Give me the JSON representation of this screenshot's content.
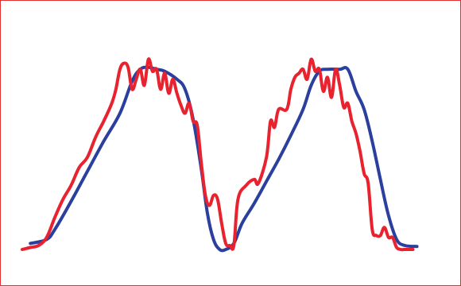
{
  "chart_data": {
    "type": "line",
    "title": "",
    "xlabel": "",
    "ylabel": "",
    "xlim": [
      0,
      100
    ],
    "ylim": [
      0,
      100
    ],
    "grid": false,
    "legend": "none",
    "colors": {
      "border": "#e03030",
      "background": "#ffffff"
    },
    "series": [
      {
        "color": "#2a3f9e",
        "stroke_width": 4,
        "points": [
          [
            2,
            3
          ],
          [
            6,
            5
          ],
          [
            8,
            10
          ],
          [
            12,
            24
          ],
          [
            16,
            39
          ],
          [
            20,
            54
          ],
          [
            24,
            68
          ],
          [
            27,
            84
          ],
          [
            29,
            90
          ],
          [
            31,
            91
          ],
          [
            33,
            90
          ],
          [
            35,
            89
          ],
          [
            38,
            85
          ],
          [
            40,
            80
          ],
          [
            42,
            65
          ],
          [
            44,
            40
          ],
          [
            45.5,
            18
          ],
          [
            47,
            5
          ],
          [
            48.5,
            0
          ],
          [
            50,
            0
          ],
          [
            52,
            3
          ],
          [
            54,
            13
          ],
          [
            57,
            23
          ],
          [
            60,
            34
          ],
          [
            63,
            45
          ],
          [
            66,
            57
          ],
          [
            69,
            70
          ],
          [
            71,
            82
          ],
          [
            73,
            89
          ],
          [
            75,
            90
          ],
          [
            78,
            90
          ],
          [
            80,
            90
          ],
          [
            82,
            79
          ],
          [
            84,
            70
          ],
          [
            86,
            54
          ],
          [
            88,
            35
          ],
          [
            90,
            17
          ],
          [
            92,
            5
          ],
          [
            94,
            2
          ],
          [
            97,
            1.5
          ]
        ]
      },
      {
        "color": "#e8232f",
        "stroke_width": 4,
        "points": [
          [
            0,
            0
          ],
          [
            2,
            1
          ],
          [
            4,
            2
          ],
          [
            6,
            6
          ],
          [
            8,
            16
          ],
          [
            10,
            25
          ],
          [
            12,
            32
          ],
          [
            14,
            41
          ],
          [
            16,
            46
          ],
          [
            18,
            56
          ],
          [
            20,
            64
          ],
          [
            22,
            73
          ],
          [
            23,
            80
          ],
          [
            24,
            90
          ],
          [
            25,
            93
          ],
          [
            26,
            91
          ],
          [
            27,
            80
          ],
          [
            28,
            85
          ],
          [
            29,
            90
          ],
          [
            30,
            82
          ],
          [
            31,
            95
          ],
          [
            32,
            89
          ],
          [
            33,
            90
          ],
          [
            34,
            80
          ],
          [
            35,
            88
          ],
          [
            36,
            78
          ],
          [
            37,
            85
          ],
          [
            38,
            78
          ],
          [
            39,
            72
          ],
          [
            40,
            68
          ],
          [
            41,
            73
          ],
          [
            42,
            64
          ],
          [
            43,
            62
          ],
          [
            44,
            43
          ],
          [
            45,
            27
          ],
          [
            46,
            22
          ],
          [
            47,
            27
          ],
          [
            48,
            25
          ],
          [
            49,
            13
          ],
          [
            50,
            3
          ],
          [
            51,
            2
          ],
          [
            52,
            2
          ],
          [
            53,
            25
          ],
          [
            55,
            32
          ],
          [
            57,
            35
          ],
          [
            58,
            33
          ],
          [
            60,
            46
          ],
          [
            61,
            64
          ],
          [
            62,
            61
          ],
          [
            63,
            70
          ],
          [
            65,
            70
          ],
          [
            66,
            80
          ],
          [
            67,
            86
          ],
          [
            68,
            88
          ],
          [
            69,
            90
          ],
          [
            70,
            85
          ],
          [
            71,
            95
          ],
          [
            72,
            89
          ],
          [
            73,
            90
          ],
          [
            74,
            79
          ],
          [
            75,
            86
          ],
          [
            76,
            76
          ],
          [
            77,
            90
          ],
          [
            78,
            82
          ],
          [
            79,
            71
          ],
          [
            80,
            73
          ],
          [
            81,
            64
          ],
          [
            82,
            58
          ],
          [
            83,
            49
          ],
          [
            84,
            38
          ],
          [
            85,
            33
          ],
          [
            86,
            10
          ],
          [
            87,
            7
          ],
          [
            88,
            7
          ],
          [
            89,
            11
          ],
          [
            90,
            6
          ],
          [
            91,
            6
          ],
          [
            92,
            1
          ],
          [
            93,
            0
          ],
          [
            94,
            0
          ],
          [
            95,
            0
          ],
          [
            96,
            0
          ]
        ]
      }
    ]
  }
}
